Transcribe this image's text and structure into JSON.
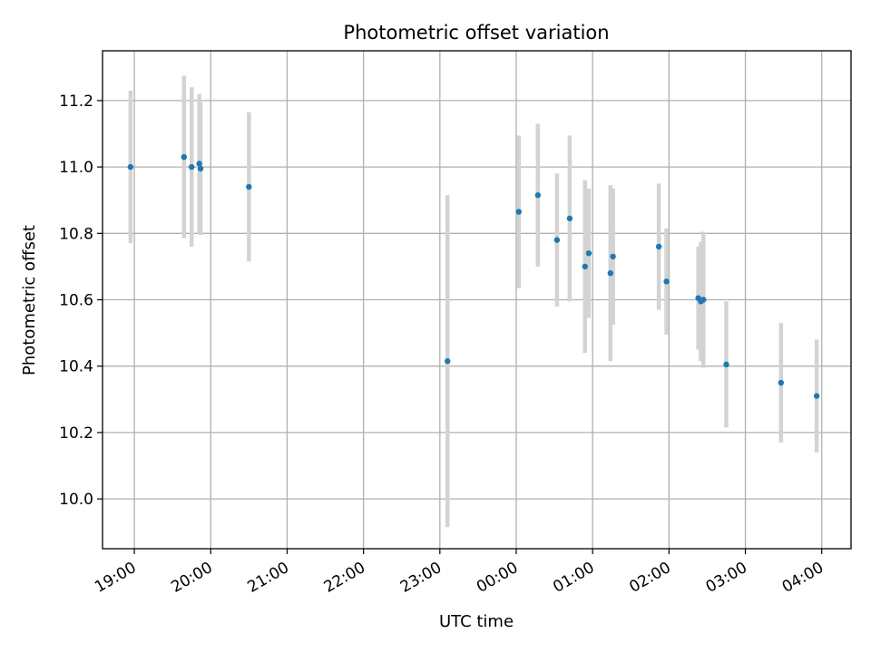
{
  "chart_data": {
    "type": "scatter",
    "title": "Photometric offset variation",
    "xlabel": "UTC time",
    "ylabel": "Photometric offset",
    "grid": true,
    "legend": "none",
    "x_axis": {
      "type": "time",
      "start": "2000-01-01T18:35",
      "end": "2000-01-02T04:23",
      "ticks": [
        {
          "t": "2000-01-01T19:00",
          "label": "19:00"
        },
        {
          "t": "2000-01-01T20:00",
          "label": "20:00"
        },
        {
          "t": "2000-01-01T21:00",
          "label": "21:00"
        },
        {
          "t": "2000-01-01T22:00",
          "label": "22:00"
        },
        {
          "t": "2000-01-01T23:00",
          "label": "23:00"
        },
        {
          "t": "2000-01-02T00:00",
          "label": "00:00"
        },
        {
          "t": "2000-01-02T01:00",
          "label": "01:00"
        },
        {
          "t": "2000-01-02T02:00",
          "label": "02:00"
        },
        {
          "t": "2000-01-02T03:00",
          "label": "03:00"
        },
        {
          "t": "2000-01-02T04:00",
          "label": "04:00"
        }
      ]
    },
    "ylim": [
      9.85,
      11.35
    ],
    "y_ticks": [
      "10.0",
      "10.2",
      "10.4",
      "10.6",
      "10.8",
      "11.0",
      "11.2"
    ],
    "colors": {
      "points": "#1f77b4",
      "error_bars": "#d3d3d3",
      "grid": "#b0b0b0"
    },
    "points": [
      {
        "t": "2000-01-01T18:57",
        "y": 11.0,
        "err": 0.23
      },
      {
        "t": "2000-01-01T19:39",
        "y": 11.03,
        "err": 0.245
      },
      {
        "t": "2000-01-01T19:45",
        "y": 11.0,
        "err": 0.24
      },
      {
        "t": "2000-01-01T19:51",
        "y": 11.01,
        "err": 0.21
      },
      {
        "t": "2000-01-01T19:52",
        "y": 10.995,
        "err": 0.2
      },
      {
        "t": "2000-01-01T20:30",
        "y": 10.94,
        "err": 0.225
      },
      {
        "t": "2000-01-01T23:06",
        "y": 10.415,
        "err": 0.5
      },
      {
        "t": "2000-01-02T00:02",
        "y": 10.865,
        "err": 0.23
      },
      {
        "t": "2000-01-02T00:17",
        "y": 10.915,
        "err": 0.215
      },
      {
        "t": "2000-01-02T00:32",
        "y": 10.78,
        "err": 0.2
      },
      {
        "t": "2000-01-02T00:42",
        "y": 10.845,
        "err": 0.25
      },
      {
        "t": "2000-01-02T00:54",
        "y": 10.7,
        "err": 0.26
      },
      {
        "t": "2000-01-02T00:57",
        "y": 10.74,
        "err": 0.195
      },
      {
        "t": "2000-01-02T01:14",
        "y": 10.68,
        "err": 0.265
      },
      {
        "t": "2000-01-02T01:16",
        "y": 10.73,
        "err": 0.205
      },
      {
        "t": "2000-01-02T01:52",
        "y": 10.76,
        "err": 0.19
      },
      {
        "t": "2000-01-02T01:58",
        "y": 10.655,
        "err": 0.16
      },
      {
        "t": "2000-01-02T02:23",
        "y": 10.605,
        "err": 0.155
      },
      {
        "t": "2000-01-02T02:25",
        "y": 10.595,
        "err": 0.18
      },
      {
        "t": "2000-01-02T02:27",
        "y": 10.6,
        "err": 0.205
      },
      {
        "t": "2000-01-02T02:45",
        "y": 10.405,
        "err": 0.19
      },
      {
        "t": "2000-01-02T03:28",
        "y": 10.35,
        "err": 0.18
      },
      {
        "t": "2000-01-02T03:56",
        "y": 10.31,
        "err": 0.17
      }
    ]
  }
}
